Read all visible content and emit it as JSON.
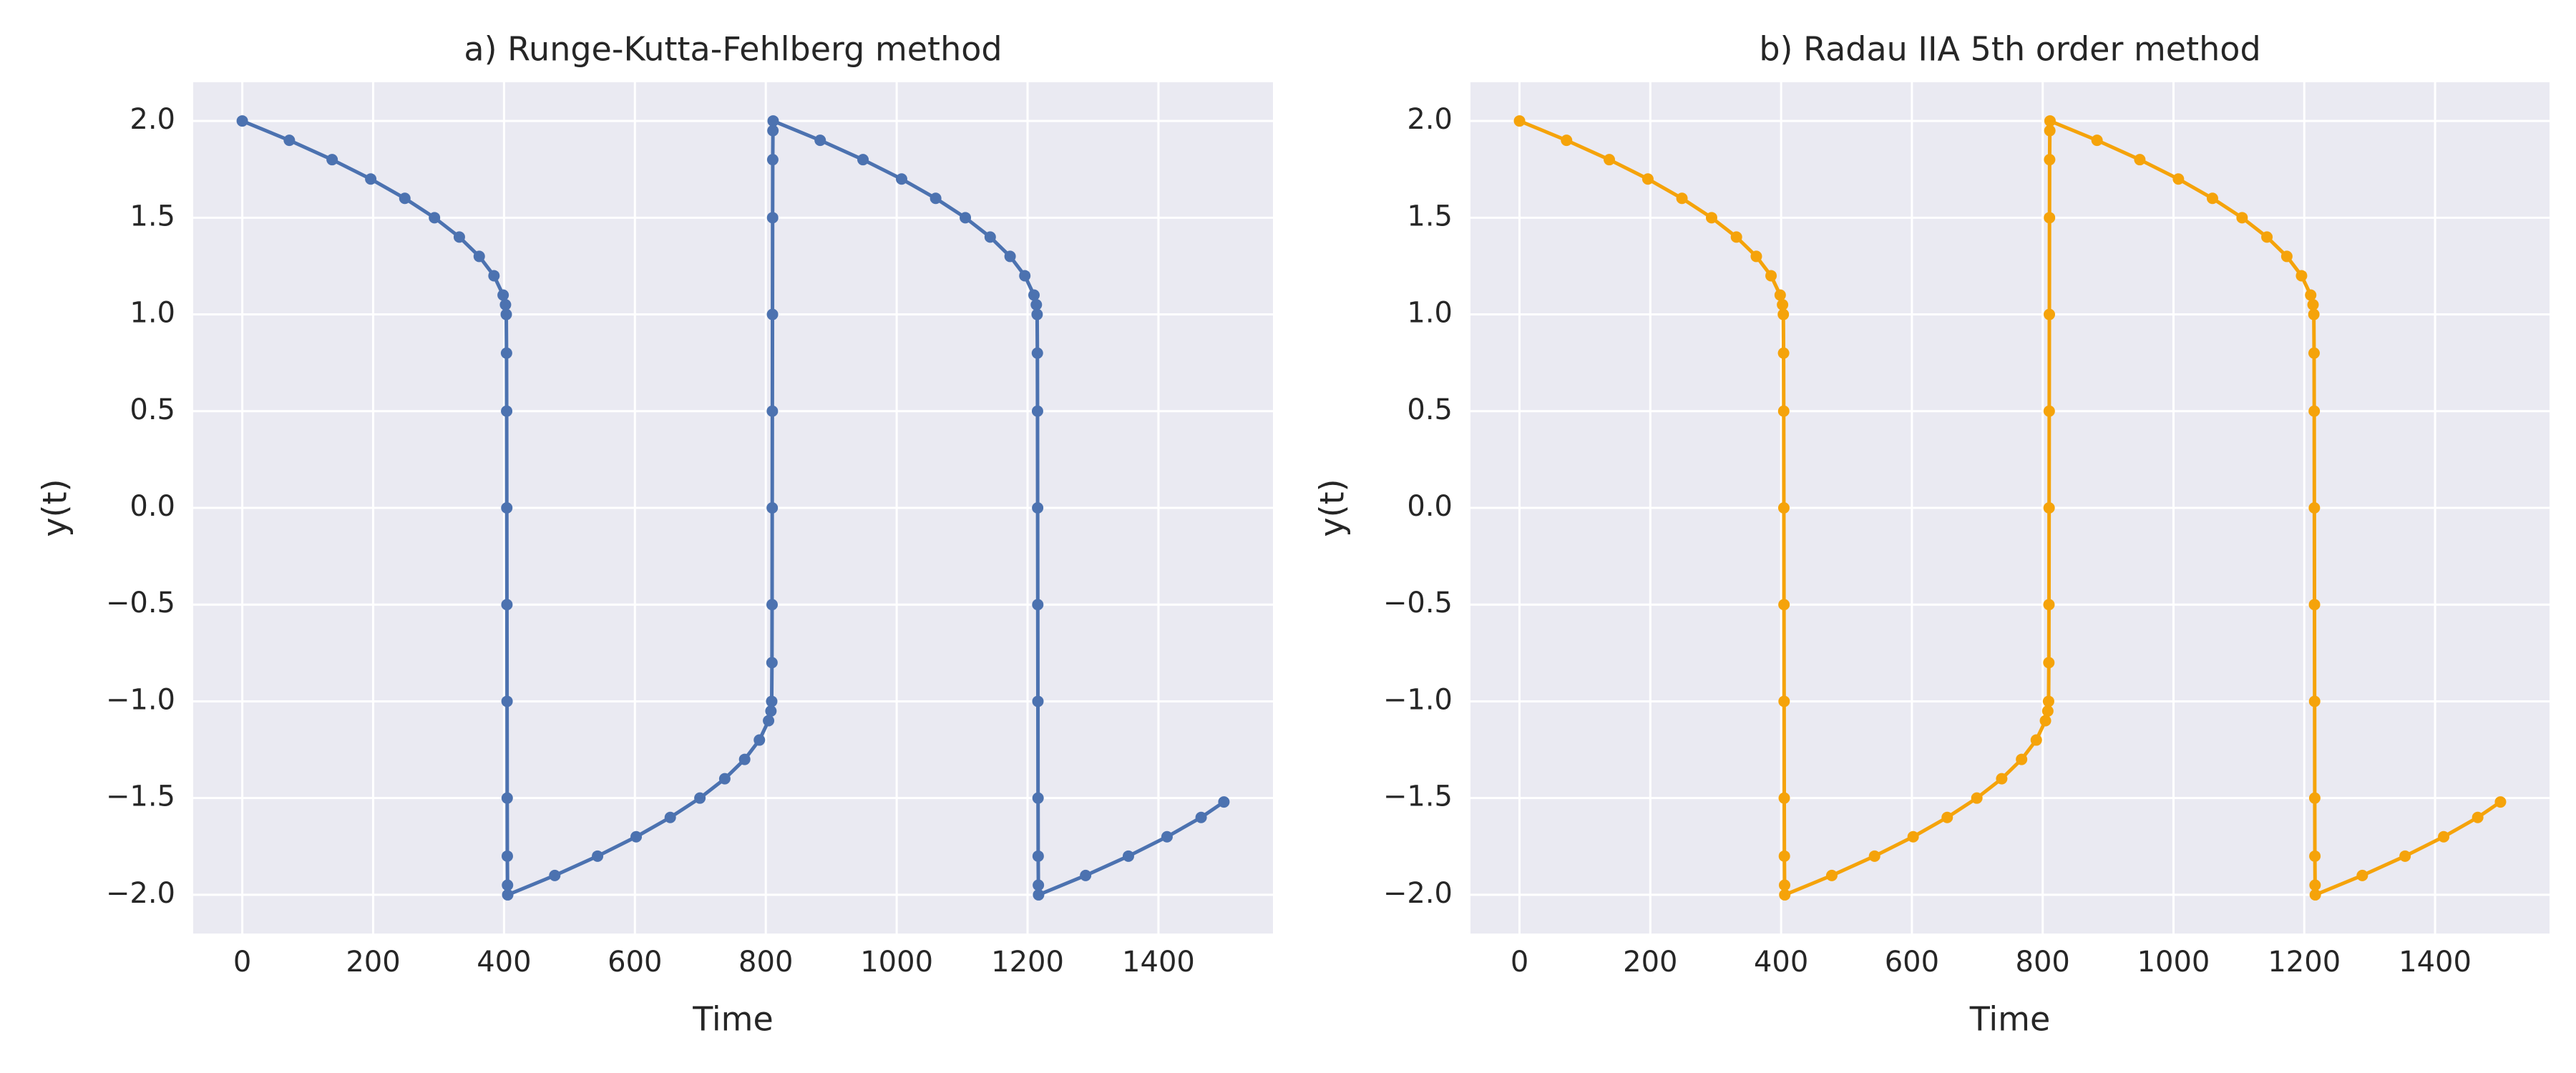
{
  "chart_data": [
    {
      "type": "line",
      "title": "a) Runge-Kutta-Fehlberg method",
      "xlabel": "Time",
      "ylabel": "y(t)",
      "color": "#4c72b0",
      "markers": true,
      "grid": true,
      "x": [
        0,
        71.9,
        137.3,
        196.3,
        248.4,
        293.7,
        331.7,
        362.1,
        384.6,
        398.6,
        402.2,
        403.4,
        403.8,
        404.0,
        404.2,
        404.4,
        404.6,
        404.8,
        405.0,
        405.3,
        405.6,
        477.5,
        542.9,
        601.9,
        654.0,
        699.3,
        737.3,
        767.7,
        790.2,
        804.2,
        807.8,
        809.0,
        809.4,
        809.6,
        809.8,
        810.0,
        810.2,
        810.4,
        810.6,
        810.9,
        811.2,
        883.1,
        948.5,
        1007.5,
        1059.6,
        1104.9,
        1142.9,
        1173.3,
        1195.8,
        1209.8,
        1213.4,
        1214.6,
        1215.0,
        1215.2,
        1215.4,
        1215.6,
        1215.8,
        1216.0,
        1216.2,
        1216.5,
        1216.8,
        1288.7,
        1354.1,
        1413.1,
        1465.2,
        1500
      ],
      "values": [
        2.0,
        1.9,
        1.8,
        1.7,
        1.6,
        1.5,
        1.4,
        1.3,
        1.2,
        1.1,
        1.05,
        1.0,
        0.8,
        0.5,
        0.0,
        -0.5,
        -1.0,
        -1.5,
        -1.8,
        -1.95,
        -2.0,
        -1.9,
        -1.8,
        -1.7,
        -1.6,
        -1.5,
        -1.4,
        -1.3,
        -1.2,
        -1.1,
        -1.05,
        -1.0,
        -0.8,
        -0.5,
        0.0,
        0.5,
        1.0,
        1.5,
        1.8,
        1.95,
        2.0,
        1.9,
        1.8,
        1.7,
        1.6,
        1.5,
        1.4,
        1.3,
        1.2,
        1.1,
        1.05,
        1.0,
        0.8,
        0.5,
        0.0,
        -0.5,
        -1.0,
        -1.5,
        -1.8,
        -1.95,
        -2.0,
        -1.9,
        -1.8,
        -1.7,
        -1.6,
        -1.52
      ],
      "xlim": [
        -75,
        1575
      ],
      "xticks": [
        0,
        200,
        400,
        600,
        800,
        1000,
        1200,
        1400
      ],
      "ylim": [
        -2.2,
        2.2
      ],
      "yticks": [
        {
          "value": -2,
          "label": "−2.0"
        },
        {
          "value": -1.5,
          "label": "−1.5"
        },
        {
          "value": -1,
          "label": "−1.0"
        },
        {
          "value": -0.5,
          "label": "−0.5"
        },
        {
          "value": 0,
          "label": "0.0"
        },
        0.5,
        {
          "value": 1,
          "label": "1.0"
        },
        1.5,
        {
          "value": 2,
          "label": "2.0"
        }
      ]
    },
    {
      "type": "line",
      "title": "b) Radau IIA 5th order method",
      "xlabel": "Time",
      "ylabel": "y(t)",
      "color": "#f5a30a",
      "markers": true,
      "grid": true,
      "x": [
        0,
        71.9,
        137.3,
        196.3,
        248.4,
        293.7,
        331.7,
        362.1,
        384.6,
        398.6,
        402.2,
        403.4,
        403.8,
        404.0,
        404.2,
        404.4,
        404.6,
        404.8,
        405.0,
        405.3,
        405.6,
        477.5,
        542.9,
        601.9,
        654.0,
        699.3,
        737.3,
        767.7,
        790.2,
        804.2,
        807.8,
        809.0,
        809.4,
        809.6,
        809.8,
        810.0,
        810.2,
        810.4,
        810.6,
        810.9,
        811.2,
        883.1,
        948.5,
        1007.5,
        1059.6,
        1104.9,
        1142.9,
        1173.3,
        1195.8,
        1209.8,
        1213.4,
        1214.6,
        1215.0,
        1215.2,
        1215.4,
        1215.6,
        1215.8,
        1216.0,
        1216.2,
        1216.5,
        1216.8,
        1288.7,
        1354.1,
        1413.1,
        1465.2,
        1500
      ],
      "values": [
        2.0,
        1.9,
        1.8,
        1.7,
        1.6,
        1.5,
        1.4,
        1.3,
        1.2,
        1.1,
        1.05,
        1.0,
        0.8,
        0.5,
        0.0,
        -0.5,
        -1.0,
        -1.5,
        -1.8,
        -1.95,
        -2.0,
        -1.9,
        -1.8,
        -1.7,
        -1.6,
        -1.5,
        -1.4,
        -1.3,
        -1.2,
        -1.1,
        -1.05,
        -1.0,
        -0.8,
        -0.5,
        0.0,
        0.5,
        1.0,
        1.5,
        1.8,
        1.95,
        2.0,
        1.9,
        1.8,
        1.7,
        1.6,
        1.5,
        1.4,
        1.3,
        1.2,
        1.1,
        1.05,
        1.0,
        0.8,
        0.5,
        0.0,
        -0.5,
        -1.0,
        -1.5,
        -1.8,
        -1.95,
        -2.0,
        -1.9,
        -1.8,
        -1.7,
        -1.6,
        -1.52
      ],
      "xlim": [
        -75,
        1575
      ],
      "xticks": [
        0,
        200,
        400,
        600,
        800,
        1000,
        1200,
        1400
      ],
      "ylim": [
        -2.2,
        2.2
      ],
      "yticks": [
        {
          "value": -2,
          "label": "−2.0"
        },
        {
          "value": -1.5,
          "label": "−1.5"
        },
        {
          "value": -1,
          "label": "−1.0"
        },
        {
          "value": -0.5,
          "label": "−0.5"
        },
        {
          "value": 0,
          "label": "0.0"
        },
        0.5,
        {
          "value": 1,
          "label": "1.0"
        },
        1.5,
        {
          "value": 2,
          "label": "2.0"
        }
      ]
    }
  ]
}
